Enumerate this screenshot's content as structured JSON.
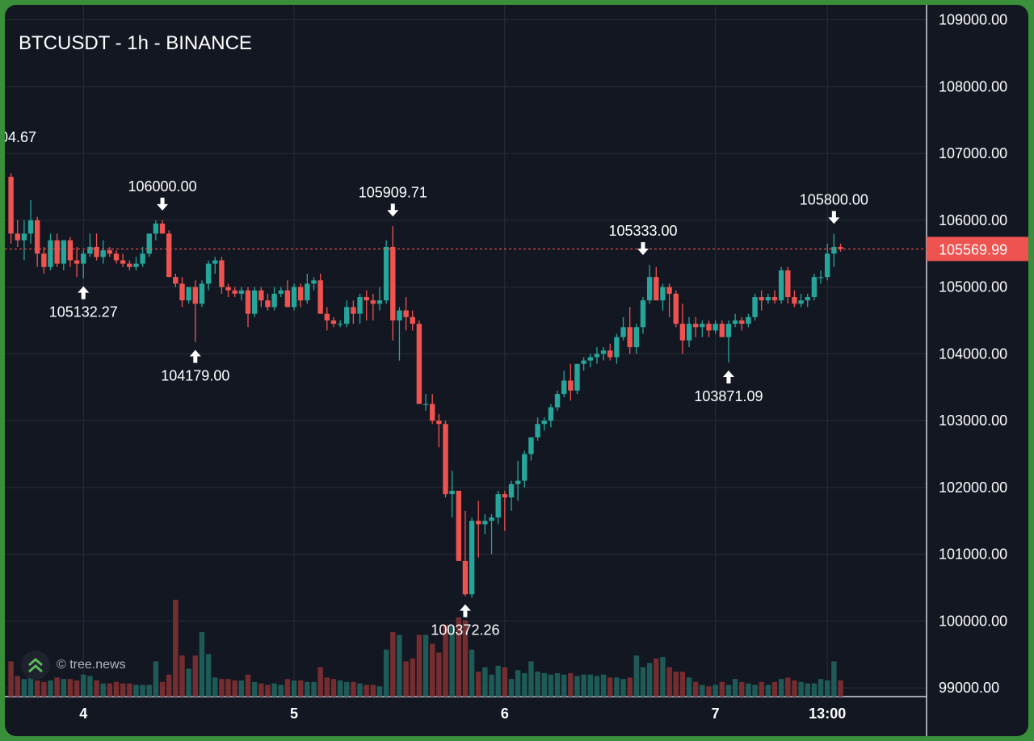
{
  "header": {
    "title": "BTCUSDT - 1h - BINANCE"
  },
  "watermark": {
    "text": "© tree.news"
  },
  "colors": {
    "up": "#26a69a",
    "down": "#ef5350",
    "background": "#131722",
    "grid": "#2a2e39",
    "axis_text": "#ffffff",
    "price_line": "#ef5350"
  },
  "chart_data": {
    "type": "candlestick",
    "title": "BTCUSDT - 1h - BINANCE",
    "ylim": [
      98900,
      109200
    ],
    "y_ticks": [
      109000,
      108000,
      107000,
      106000,
      105000,
      104000,
      103000,
      102000,
      101000,
      100000,
      99000
    ],
    "y_tick_labels": [
      "109000.00",
      "108000.00",
      "107000.00",
      "106000.00",
      "105000.00",
      "104000.00",
      "103000.00",
      "102000.00",
      "101000.00",
      "100000.00",
      "99000.00"
    ],
    "x_ticks": [
      {
        "label": "4",
        "index": 11
      },
      {
        "label": "5",
        "index": 43
      },
      {
        "label": "6",
        "index": 75
      },
      {
        "label": "7",
        "index": 107
      },
      {
        "label": "13:00",
        "index": 124
      }
    ],
    "current_price": 105569.99,
    "current_price_label": "105569.99",
    "candles": [
      [
        106650,
        106700,
        105650,
        105800
      ],
      [
        105800,
        106000,
        105600,
        105700
      ],
      [
        105700,
        106000,
        105400,
        105800
      ],
      [
        105800,
        106300,
        105650,
        106000
      ],
      [
        106000,
        106050,
        105300,
        105500
      ],
      [
        105500,
        105600,
        105200,
        105300
      ],
      [
        105300,
        105800,
        105250,
        105700
      ],
      [
        105700,
        105800,
        105300,
        105350
      ],
      [
        105350,
        105700,
        105250,
        105700
      ],
      [
        105700,
        105750,
        105300,
        105400
      ],
      [
        105400,
        105600,
        105150,
        105350
      ],
      [
        105350,
        105550,
        105130,
        105500
      ],
      [
        105500,
        105800,
        105450,
        105600
      ],
      [
        105600,
        105800,
        105400,
        105450
      ],
      [
        105450,
        105700,
        105350,
        105550
      ],
      [
        105550,
        105600,
        105450,
        105500
      ],
      [
        105500,
        105550,
        105350,
        105400
      ],
      [
        105400,
        105500,
        105300,
        105350
      ],
      [
        105350,
        105400,
        105250,
        105300
      ],
      [
        105300,
        105450,
        105250,
        105350
      ],
      [
        105350,
        105600,
        105300,
        105500
      ],
      [
        105500,
        105800,
        105450,
        105800
      ],
      [
        105800,
        106000,
        105700,
        105950
      ],
      [
        105950,
        106000,
        105800,
        105800
      ],
      [
        105800,
        105850,
        105150,
        105150
      ],
      [
        105150,
        105200,
        105000,
        105050
      ],
      [
        105050,
        105150,
        104700,
        104800
      ],
      [
        104800,
        105000,
        104750,
        105000
      ],
      [
        105000,
        105100,
        104179,
        104750
      ],
      [
        104750,
        105100,
        104700,
        105050
      ],
      [
        105050,
        105400,
        104950,
        105350
      ],
      [
        105350,
        105450,
        105200,
        105400
      ],
      [
        105400,
        105450,
        104900,
        105000
      ],
      [
        105000,
        105050,
        104850,
        104950
      ],
      [
        104950,
        105000,
        104850,
        104900
      ],
      [
        104900,
        105000,
        104800,
        104950
      ],
      [
        104950,
        105000,
        104400,
        104600
      ],
      [
        104600,
        105000,
        104550,
        104950
      ],
      [
        104950,
        105000,
        104700,
        104800
      ],
      [
        104800,
        104900,
        104650,
        104700
      ],
      [
        104700,
        105000,
        104650,
        104900
      ],
      [
        104900,
        105000,
        104850,
        104950
      ],
      [
        104950,
        105100,
        104700,
        104700
      ],
      [
        104700,
        105050,
        104650,
        105000
      ],
      [
        105000,
        105050,
        104700,
        104800
      ],
      [
        104800,
        105200,
        104750,
        105050
      ],
      [
        105050,
        105150,
        104950,
        105100
      ],
      [
        105100,
        105200,
        104600,
        104600
      ],
      [
        104600,
        104700,
        104350,
        104500
      ],
      [
        104500,
        104550,
        104400,
        104450
      ],
      [
        104450,
        104500,
        104400,
        104450
      ],
      [
        104450,
        104800,
        104400,
        104700
      ],
      [
        104700,
        104800,
        104450,
        104600
      ],
      [
        104600,
        104900,
        104450,
        104850
      ],
      [
        104850,
        104950,
        104500,
        104800
      ],
      [
        104800,
        104900,
        104500,
        104750
      ],
      [
        104750,
        105000,
        104650,
        104800
      ],
      [
        104800,
        105700,
        104750,
        105600
      ],
      [
        105600,
        105910,
        104200,
        104500
      ],
      [
        104500,
        104700,
        103900,
        104650
      ],
      [
        104650,
        104850,
        104350,
        104550
      ],
      [
        104550,
        104650,
        104350,
        104450
      ],
      [
        104450,
        104500,
        103250,
        103250
      ],
      [
        103250,
        103400,
        103150,
        103250
      ],
      [
        103250,
        103400,
        102950,
        103000
      ],
      [
        103000,
        103100,
        102600,
        102950
      ],
      [
        102950,
        103000,
        101850,
        101900
      ],
      [
        101900,
        102250,
        101550,
        101950
      ],
      [
        101950,
        101950,
        100900,
        100900
      ],
      [
        100900,
        101650,
        100372,
        100400
      ],
      [
        100400,
        101550,
        100350,
        101500
      ],
      [
        101500,
        101800,
        100950,
        101450
      ],
      [
        101450,
        101600,
        101300,
        101500
      ],
      [
        101500,
        101600,
        101000,
        101550
      ],
      [
        101550,
        101950,
        101450,
        101900
      ],
      [
        101900,
        101950,
        101350,
        101850
      ],
      [
        101850,
        102100,
        101650,
        102050
      ],
      [
        102050,
        102400,
        101800,
        102100
      ],
      [
        102100,
        102550,
        102000,
        102500
      ],
      [
        102500,
        102750,
        102400,
        102750
      ],
      [
        102750,
        103050,
        102700,
        102950
      ],
      [
        102950,
        103050,
        102850,
        103000
      ],
      [
        103000,
        103250,
        102900,
        103200
      ],
      [
        103200,
        103450,
        103150,
        103400
      ],
      [
        103400,
        103750,
        103350,
        103600
      ],
      [
        103600,
        103850,
        103300,
        103450
      ],
      [
        103450,
        103850,
        103400,
        103850
      ],
      [
        103850,
        103950,
        103750,
        103900
      ],
      [
        103900,
        104000,
        103800,
        103950
      ],
      [
        103950,
        104100,
        103850,
        104000
      ],
      [
        104000,
        104100,
        103900,
        104050
      ],
      [
        104050,
        104150,
        103900,
        103950
      ],
      [
        103950,
        104300,
        103850,
        104250
      ],
      [
        104250,
        104550,
        104200,
        104400
      ],
      [
        104400,
        104700,
        104000,
        104100
      ],
      [
        104100,
        104450,
        104000,
        104400
      ],
      [
        104400,
        104850,
        104300,
        104800
      ],
      [
        104800,
        105333,
        104750,
        105150
      ],
      [
        105150,
        105300,
        104800,
        104800
      ],
      [
        104800,
        105050,
        104650,
        105000
      ],
      [
        105000,
        105050,
        104550,
        104900
      ],
      [
        104900,
        104950,
        104400,
        104450
      ],
      [
        104450,
        104750,
        104000,
        104200
      ],
      [
        104200,
        104550,
        104100,
        104450
      ],
      [
        104450,
        104550,
        104250,
        104400
      ],
      [
        104400,
        104500,
        104250,
        104450
      ],
      [
        104450,
        104500,
        104250,
        104350
      ],
      [
        104350,
        104500,
        104300,
        104450
      ],
      [
        104450,
        104500,
        104250,
        104250
      ],
      [
        104250,
        104500,
        103871,
        104450
      ],
      [
        104450,
        104600,
        104400,
        104500
      ],
      [
        104500,
        104550,
        104350,
        104450
      ],
      [
        104450,
        104600,
        104400,
        104550
      ],
      [
        104550,
        104900,
        104500,
        104850
      ],
      [
        104850,
        104950,
        104650,
        104800
      ],
      [
        104800,
        104900,
        104750,
        104850
      ],
      [
        104850,
        104950,
        104750,
        104800
      ],
      [
        104800,
        105300,
        104750,
        105250
      ],
      [
        105250,
        105300,
        104750,
        104850
      ],
      [
        104850,
        104950,
        104700,
        104750
      ],
      [
        104750,
        104900,
        104700,
        104800
      ],
      [
        104800,
        104900,
        104700,
        104850
      ],
      [
        104850,
        105200,
        104800,
        105150
      ],
      [
        105150,
        105250,
        105050,
        105150
      ],
      [
        105150,
        105650,
        105100,
        105500
      ],
      [
        105500,
        105800,
        105300,
        105600
      ],
      [
        105600,
        105650,
        105530,
        105570
      ]
    ],
    "volumes": [
      24,
      14,
      12,
      13,
      11,
      10,
      11,
      13,
      12,
      12,
      11,
      15,
      14,
      11,
      9,
      9,
      10,
      9,
      9,
      8,
      8,
      8,
      24,
      10,
      15,
      66,
      28,
      19,
      28,
      44,
      29,
      13,
      12,
      12,
      11,
      11,
      15,
      10,
      9,
      8,
      9,
      8,
      12,
      11,
      11,
      10,
      10,
      20,
      13,
      12,
      11,
      10,
      10,
      9,
      8,
      8,
      7,
      32,
      44,
      42,
      24,
      26,
      42,
      42,
      36,
      30,
      49,
      48,
      54,
      52,
      32,
      17,
      20,
      15,
      21,
      20,
      12,
      18,
      16,
      24,
      17,
      16,
      15,
      16,
      15,
      16,
      14,
      15,
      15,
      14,
      15,
      13,
      13,
      12,
      13,
      28,
      20,
      23,
      26,
      27,
      20,
      17,
      17,
      13,
      10,
      8,
      7,
      8,
      10,
      8,
      12,
      10,
      9,
      8,
      10,
      8,
      10,
      12,
      13,
      11,
      10,
      9,
      9,
      12,
      11,
      24,
      11,
      1
    ],
    "volume_max": 66,
    "annotations": [
      {
        "index": 23,
        "price": 106000,
        "label": "106000.00",
        "direction": "down"
      },
      {
        "index": 11,
        "price": 105132.27,
        "label": "105132.27",
        "direction": "up"
      },
      {
        "index": 28,
        "price": 104179,
        "label": "104179.00",
        "direction": "up"
      },
      {
        "index": 58,
        "price": 105909.71,
        "label": "105909.71",
        "direction": "down"
      },
      {
        "index": 69,
        "price": 100372.26,
        "label": "100372.26",
        "direction": "up"
      },
      {
        "index": 96,
        "price": 105333,
        "label": "105333.00",
        "direction": "down"
      },
      {
        "index": 109,
        "price": 103871.09,
        "label": "103871.09",
        "direction": "up"
      },
      {
        "index": 125,
        "price": 105800,
        "label": "105800.00",
        "direction": "down"
      }
    ],
    "partial_label": "04.67"
  }
}
